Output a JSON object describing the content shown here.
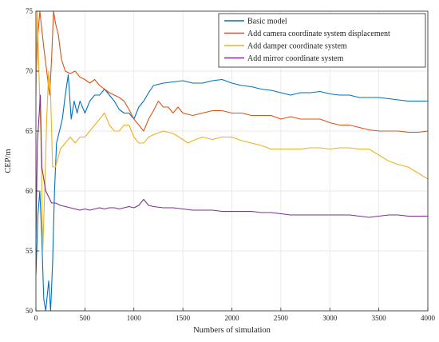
{
  "chart_data": {
    "type": "line",
    "title": "",
    "xlabel": "Numbers of simulation",
    "ylabel": "CEP/m",
    "xlim": [
      0,
      4000
    ],
    "ylim": [
      50,
      75
    ],
    "x_ticks": [
      0,
      500,
      1000,
      1500,
      2000,
      2500,
      3000,
      3500,
      4000
    ],
    "y_ticks": [
      50,
      55,
      60,
      65,
      70,
      75
    ],
    "grid": true,
    "legend_position": "top-right",
    "series": [
      {
        "name": "Basic model",
        "color": "#0072BD",
        "points": [
          [
            0,
            53
          ],
          [
            20,
            58
          ],
          [
            40,
            60
          ],
          [
            60,
            56
          ],
          [
            80,
            51
          ],
          [
            100,
            50
          ],
          [
            130,
            52.5
          ],
          [
            150,
            50
          ],
          [
            170,
            54
          ],
          [
            190,
            60
          ],
          [
            210,
            64
          ],
          [
            240,
            65
          ],
          [
            270,
            66
          ],
          [
            300,
            68
          ],
          [
            330,
            69.7
          ],
          [
            360,
            66
          ],
          [
            390,
            67.5
          ],
          [
            420,
            66.5
          ],
          [
            450,
            67.5
          ],
          [
            500,
            66.5
          ],
          [
            550,
            67.5
          ],
          [
            600,
            68
          ],
          [
            650,
            68
          ],
          [
            700,
            68.5
          ],
          [
            750,
            68
          ],
          [
            800,
            67.5
          ],
          [
            850,
            66.8
          ],
          [
            900,
            66.5
          ],
          [
            950,
            66.5
          ],
          [
            1000,
            66
          ],
          [
            1050,
            67
          ],
          [
            1100,
            67.5
          ],
          [
            1150,
            68.2
          ],
          [
            1200,
            68.8
          ],
          [
            1300,
            69
          ],
          [
            1400,
            69.1
          ],
          [
            1500,
            69.2
          ],
          [
            1600,
            69
          ],
          [
            1700,
            69
          ],
          [
            1800,
            69.2
          ],
          [
            1900,
            69.3
          ],
          [
            2000,
            69
          ],
          [
            2100,
            68.8
          ],
          [
            2200,
            68.7
          ],
          [
            2300,
            68.5
          ],
          [
            2400,
            68.4
          ],
          [
            2500,
            68.2
          ],
          [
            2600,
            68
          ],
          [
            2700,
            68.2
          ],
          [
            2800,
            68.2
          ],
          [
            2900,
            68.3
          ],
          [
            3000,
            68.1
          ],
          [
            3100,
            68
          ],
          [
            3200,
            68
          ],
          [
            3300,
            67.8
          ],
          [
            3400,
            67.8
          ],
          [
            3500,
            67.8
          ],
          [
            3600,
            67.7
          ],
          [
            3700,
            67.6
          ],
          [
            3800,
            67.5
          ],
          [
            3900,
            67.5
          ],
          [
            4000,
            67.5
          ]
        ]
      },
      {
        "name": "Add camera coordinate system displacement",
        "color": "#D95319",
        "points": [
          [
            0,
            69
          ],
          [
            20,
            73
          ],
          [
            40,
            75
          ],
          [
            80,
            72
          ],
          [
            110,
            70
          ],
          [
            140,
            68
          ],
          [
            160,
            71
          ],
          [
            180,
            75
          ],
          [
            200,
            74
          ],
          [
            230,
            73
          ],
          [
            260,
            71
          ],
          [
            300,
            70
          ],
          [
            350,
            69.8
          ],
          [
            400,
            70
          ],
          [
            450,
            69.5
          ],
          [
            500,
            69.3
          ],
          [
            550,
            69
          ],
          [
            600,
            69.3
          ],
          [
            650,
            68.8
          ],
          [
            700,
            68.5
          ],
          [
            750,
            68.2
          ],
          [
            800,
            68
          ],
          [
            850,
            67.8
          ],
          [
            900,
            67.5
          ],
          [
            950,
            66.8
          ],
          [
            1000,
            66
          ],
          [
            1050,
            65.5
          ],
          [
            1100,
            65
          ],
          [
            1150,
            66
          ],
          [
            1200,
            66.7
          ],
          [
            1250,
            67.5
          ],
          [
            1300,
            67
          ],
          [
            1350,
            67
          ],
          [
            1400,
            66.5
          ],
          [
            1450,
            67
          ],
          [
            1500,
            66.5
          ],
          [
            1600,
            66.3
          ],
          [
            1700,
            66.5
          ],
          [
            1800,
            66.7
          ],
          [
            1900,
            66.7
          ],
          [
            2000,
            66.5
          ],
          [
            2100,
            66.5
          ],
          [
            2200,
            66.3
          ],
          [
            2300,
            66.3
          ],
          [
            2400,
            66.3
          ],
          [
            2500,
            66
          ],
          [
            2600,
            66.2
          ],
          [
            2700,
            66
          ],
          [
            2800,
            66
          ],
          [
            2900,
            66
          ],
          [
            3000,
            65.7
          ],
          [
            3100,
            65.5
          ],
          [
            3200,
            65.5
          ],
          [
            3300,
            65.3
          ],
          [
            3400,
            65.1
          ],
          [
            3500,
            65
          ],
          [
            3600,
            65
          ],
          [
            3700,
            65
          ],
          [
            3800,
            64.9
          ],
          [
            3900,
            64.9
          ],
          [
            4000,
            65
          ]
        ]
      },
      {
        "name": "Add damper coordinate system",
        "color": "#EDB120",
        "points": [
          [
            0,
            68
          ],
          [
            15,
            75
          ],
          [
            30,
            70
          ],
          [
            50,
            65
          ],
          [
            70,
            55
          ],
          [
            90,
            60
          ],
          [
            110,
            66
          ],
          [
            130,
            70
          ],
          [
            150,
            68
          ],
          [
            170,
            62
          ],
          [
            200,
            62
          ],
          [
            250,
            63.5
          ],
          [
            300,
            64
          ],
          [
            350,
            64.5
          ],
          [
            400,
            64
          ],
          [
            450,
            64.5
          ],
          [
            500,
            64.5
          ],
          [
            550,
            65
          ],
          [
            600,
            65.5
          ],
          [
            650,
            66
          ],
          [
            700,
            66.5
          ],
          [
            750,
            65.5
          ],
          [
            800,
            65
          ],
          [
            850,
            65
          ],
          [
            900,
            65.5
          ],
          [
            950,
            65.5
          ],
          [
            1000,
            64.5
          ],
          [
            1050,
            64
          ],
          [
            1100,
            64
          ],
          [
            1150,
            64.5
          ],
          [
            1200,
            64.7
          ],
          [
            1300,
            65
          ],
          [
            1400,
            64.8
          ],
          [
            1500,
            64.3
          ],
          [
            1550,
            64
          ],
          [
            1600,
            64.2
          ],
          [
            1700,
            64.5
          ],
          [
            1800,
            64.3
          ],
          [
            1900,
            64.5
          ],
          [
            2000,
            64.5
          ],
          [
            2100,
            64.2
          ],
          [
            2200,
            64
          ],
          [
            2300,
            63.8
          ],
          [
            2400,
            63.5
          ],
          [
            2500,
            63.5
          ],
          [
            2600,
            63.5
          ],
          [
            2700,
            63.5
          ],
          [
            2800,
            63.6
          ],
          [
            2900,
            63.6
          ],
          [
            3000,
            63.5
          ],
          [
            3100,
            63.6
          ],
          [
            3200,
            63.6
          ],
          [
            3300,
            63.5
          ],
          [
            3400,
            63.5
          ],
          [
            3500,
            63
          ],
          [
            3600,
            62.5
          ],
          [
            3700,
            62.2
          ],
          [
            3800,
            62
          ],
          [
            3900,
            61.5
          ],
          [
            4000,
            61
          ]
        ]
      },
      {
        "name": "Add mirror coordinate system",
        "color": "#7E2F8E",
        "points": [
          [
            0,
            56
          ],
          [
            15,
            64
          ],
          [
            30,
            66
          ],
          [
            45,
            68
          ],
          [
            60,
            62
          ],
          [
            80,
            61
          ],
          [
            100,
            60
          ],
          [
            130,
            59.5
          ],
          [
            160,
            59
          ],
          [
            200,
            59
          ],
          [
            250,
            58.8
          ],
          [
            300,
            58.7
          ],
          [
            350,
            58.6
          ],
          [
            400,
            58.5
          ],
          [
            450,
            58.4
          ],
          [
            500,
            58.5
          ],
          [
            550,
            58.4
          ],
          [
            600,
            58.5
          ],
          [
            650,
            58.6
          ],
          [
            700,
            58.5
          ],
          [
            750,
            58.6
          ],
          [
            800,
            58.6
          ],
          [
            850,
            58.5
          ],
          [
            900,
            58.6
          ],
          [
            950,
            58.7
          ],
          [
            1000,
            58.6
          ],
          [
            1050,
            58.8
          ],
          [
            1100,
            59.3
          ],
          [
            1150,
            58.8
          ],
          [
            1200,
            58.7
          ],
          [
            1300,
            58.6
          ],
          [
            1400,
            58.6
          ],
          [
            1500,
            58.5
          ],
          [
            1600,
            58.4
          ],
          [
            1700,
            58.4
          ],
          [
            1800,
            58.4
          ],
          [
            1900,
            58.3
          ],
          [
            2000,
            58.3
          ],
          [
            2100,
            58.3
          ],
          [
            2200,
            58.3
          ],
          [
            2300,
            58.2
          ],
          [
            2400,
            58.2
          ],
          [
            2500,
            58.1
          ],
          [
            2600,
            58
          ],
          [
            2700,
            58
          ],
          [
            2800,
            58
          ],
          [
            2900,
            58
          ],
          [
            3000,
            58
          ],
          [
            3100,
            58
          ],
          [
            3200,
            58
          ],
          [
            3300,
            57.9
          ],
          [
            3400,
            57.8
          ],
          [
            3500,
            57.9
          ],
          [
            3600,
            58
          ],
          [
            3700,
            58
          ],
          [
            3800,
            57.9
          ],
          [
            3900,
            57.9
          ],
          [
            4000,
            57.9
          ]
        ]
      }
    ]
  }
}
